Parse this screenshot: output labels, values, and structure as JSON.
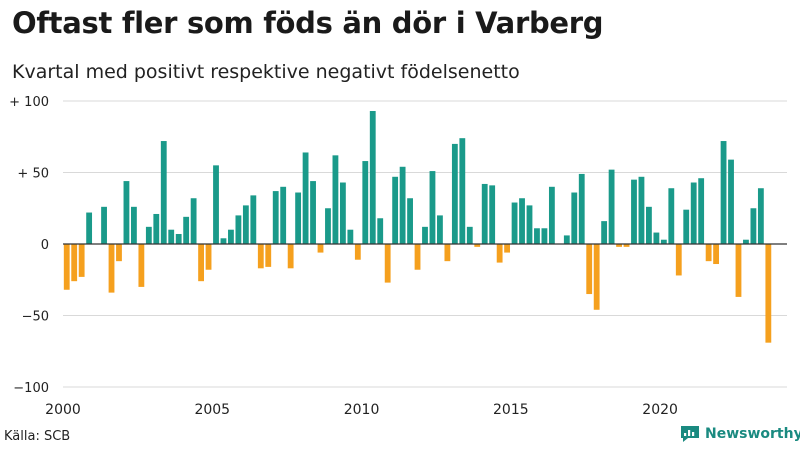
{
  "title": "Oftast fler som föds än dör i Varberg",
  "subtitle": "Kvartal med positivt respektive negativt födelsenetto",
  "source": "Källa: SCB",
  "brand": "Newsworthy",
  "colors": {
    "positive": "#1a9a8a",
    "negative": "#f5a01e",
    "grid": "#d9d9d9",
    "zero": "#333333",
    "brand": "#1a8a80"
  },
  "chart_data": {
    "type": "bar",
    "title": "Oftast fler som föds än dör i Varberg",
    "subtitle": "Kvartal med positivt respektive negativt födelsenetto",
    "xlabel": "",
    "ylabel": "",
    "x_start": 2000,
    "periods_per_year": 4,
    "xlim": [
      2000,
      2024.25
    ],
    "ylim": [
      -100,
      100
    ],
    "yticks": [
      100,
      50,
      0,
      -50,
      -100
    ],
    "ytick_labels": [
      "+ 100",
      "+ 50",
      "0",
      "−50",
      "−100"
    ],
    "xticks": [
      2000,
      2005,
      2010,
      2015,
      2020
    ],
    "xtick_labels": [
      "2000",
      "2005",
      "2010",
      "2015",
      "2020"
    ],
    "values": [
      -32,
      -26,
      -23,
      22,
      0,
      26,
      -34,
      -12,
      44,
      26,
      -30,
      12,
      21,
      72,
      10,
      7,
      19,
      32,
      -26,
      -18,
      55,
      4,
      10,
      20,
      27,
      34,
      -17,
      -16,
      37,
      40,
      -17,
      36,
      64,
      44,
      -6,
      25,
      62,
      43,
      10,
      -11,
      58,
      93,
      18,
      -27,
      47,
      54,
      32,
      -18,
      12,
      51,
      20,
      -12,
      70,
      74,
      12,
      -2,
      42,
      41,
      -13,
      -6,
      29,
      32,
      27,
      11,
      11,
      40,
      0,
      6,
      36,
      49,
      -35,
      -46,
      16,
      52,
      -2,
      -2,
      45,
      47,
      26,
      8,
      3,
      39,
      -22,
      24,
      43,
      46,
      -12,
      -14,
      72,
      59,
      -37,
      3,
      25,
      39,
      -69
    ]
  }
}
